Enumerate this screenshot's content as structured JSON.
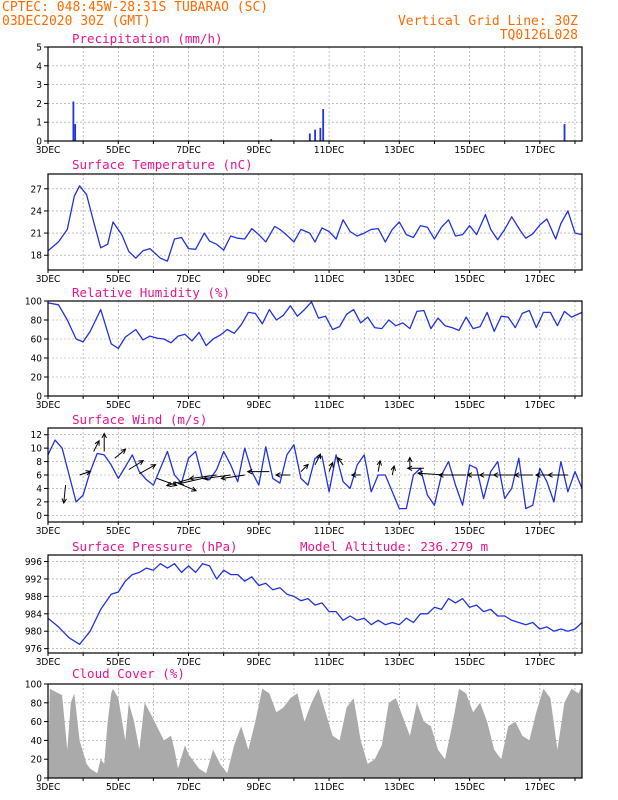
{
  "header": {
    "line1": "CPTEC:   048:45W-28:31S  TUBARAO (SC)",
    "line2": "03DEC2020 30Z (GMT)",
    "right1": "Vertical Grid Line: 30Z",
    "right2": "TQ0126L028"
  },
  "colors": {
    "header": "#ff6a00",
    "title": "#e8158c",
    "line": "#2233dd",
    "cloud": "#aaaaaa",
    "wind_arrow": "#000000"
  },
  "x_tick_labels": [
    "3DEC",
    "5DEC",
    "7DEC",
    "9DEC",
    "11DEC",
    "13DEC",
    "15DEC",
    "17DEC"
  ],
  "chart_data": [
    {
      "id": "precipitation",
      "type": "bar",
      "title": "Precipitation (mm/h)",
      "x_unit": "days since 3DEC2020 00Z",
      "xlim": [
        0,
        15.2
      ],
      "ylim": [
        0,
        5
      ],
      "yticks": [
        0,
        1,
        2,
        3,
        4,
        5
      ],
      "x": [
        0.72,
        0.77,
        6.35,
        7.45,
        7.6,
        7.75,
        7.83,
        14.7
      ],
      "values": [
        2.1,
        0.9,
        0.1,
        0.4,
        0.6,
        0.7,
        1.7,
        0.9
      ]
    },
    {
      "id": "temperature",
      "type": "line",
      "title": "Surface Temperature (nC)",
      "xlim": [
        0,
        15.2
      ],
      "ylim": [
        16,
        29
      ],
      "yticks": [
        18,
        21,
        24,
        27
      ],
      "x": [
        0,
        0.3,
        0.55,
        0.75,
        0.9,
        1.1,
        1.3,
        1.5,
        1.7,
        1.85,
        2.1,
        2.3,
        2.5,
        2.7,
        2.9,
        3.2,
        3.4,
        3.6,
        3.8,
        4.0,
        4.2,
        4.45,
        4.6,
        4.8,
        5.0,
        5.2,
        5.4,
        5.6,
        5.8,
        6.0,
        6.2,
        6.45,
        6.6,
        6.8,
        7.0,
        7.2,
        7.45,
        7.6,
        7.8,
        8.0,
        8.2,
        8.4,
        8.6,
        8.8,
        9.0,
        9.2,
        9.4,
        9.6,
        9.8,
        10.0,
        10.2,
        10.4,
        10.6,
        10.8,
        11.0,
        11.2,
        11.4,
        11.6,
        11.8,
        12.0,
        12.2,
        12.45,
        12.6,
        12.8,
        13.0,
        13.2,
        13.45,
        13.6,
        13.8,
        14.0,
        14.2,
        14.45,
        14.6,
        14.8,
        15.0,
        15.2
      ],
      "values": [
        18.6,
        19.8,
        21.5,
        26.0,
        27.4,
        26.2,
        22.5,
        19.0,
        19.5,
        22.5,
        20.8,
        18.5,
        17.6,
        18.6,
        18.9,
        17.6,
        17.2,
        20.2,
        20.4,
        18.9,
        18.8,
        21.0,
        19.9,
        19.5,
        18.7,
        20.6,
        20.3,
        20.2,
        21.6,
        20.8,
        19.8,
        21.9,
        21.5,
        20.7,
        19.8,
        21.5,
        21.0,
        19.8,
        21.7,
        21.2,
        20.2,
        22.8,
        21.2,
        20.6,
        21.0,
        21.5,
        21.6,
        19.8,
        21.5,
        22.5,
        20.8,
        20.4,
        22.0,
        21.8,
        20.2,
        21.8,
        22.8,
        20.6,
        20.8,
        22.0,
        20.8,
        23.5,
        21.5,
        20.1,
        21.5,
        23.2,
        21.3,
        20.3,
        20.9,
        22.1,
        22.9,
        20.2,
        22.3,
        24.0,
        21.0,
        20.8
      ]
    },
    {
      "id": "humidity",
      "type": "line",
      "title": "Relative Humidity (%)",
      "xlim": [
        0,
        15.2
      ],
      "ylim": [
        0,
        100
      ],
      "yticks": [
        0,
        20,
        40,
        60,
        80,
        100
      ],
      "x": [
        0,
        0.3,
        0.55,
        0.8,
        1.0,
        1.2,
        1.5,
        1.8,
        2.0,
        2.2,
        2.5,
        2.7,
        2.9,
        3.1,
        3.3,
        3.5,
        3.7,
        3.9,
        4.1,
        4.3,
        4.5,
        4.7,
        4.9,
        5.1,
        5.3,
        5.5,
        5.7,
        5.9,
        6.1,
        6.3,
        6.5,
        6.7,
        6.9,
        7.1,
        7.3,
        7.5,
        7.7,
        7.9,
        8.1,
        8.3,
        8.5,
        8.7,
        8.9,
        9.1,
        9.3,
        9.5,
        9.7,
        9.9,
        10.1,
        10.3,
        10.5,
        10.7,
        10.9,
        11.1,
        11.3,
        11.5,
        11.7,
        11.9,
        12.1,
        12.3,
        12.5,
        12.7,
        12.9,
        13.1,
        13.3,
        13.5,
        13.7,
        13.9,
        14.1,
        14.3,
        14.5,
        14.7,
        14.9,
        15.2
      ],
      "values": [
        98,
        96,
        80,
        60,
        57,
        68,
        91,
        55,
        50,
        62,
        70,
        59,
        63,
        61,
        60,
        56,
        63,
        65,
        58,
        67,
        53,
        60,
        64,
        70,
        66,
        75,
        88,
        87,
        76,
        91,
        80,
        85,
        95,
        84,
        91,
        99,
        82,
        84,
        70,
        73,
        86,
        91,
        77,
        83,
        72,
        71,
        80,
        74,
        77,
        71,
        89,
        90,
        71,
        82,
        74,
        72,
        69,
        83,
        71,
        73,
        88,
        68,
        84,
        83,
        72,
        87,
        90,
        72,
        88,
        88,
        74,
        89,
        83,
        88
      ]
    },
    {
      "id": "wind",
      "type": "line",
      "title": "Surface Wind (m/s)",
      "xlim": [
        0,
        15.2
      ],
      "ylim": [
        -1,
        13
      ],
      "yticks": [
        0,
        2,
        4,
        6,
        8,
        10,
        12
      ],
      "x": [
        0,
        0.2,
        0.4,
        0.6,
        0.8,
        1.0,
        1.2,
        1.4,
        1.6,
        1.8,
        2.0,
        2.2,
        2.4,
        2.6,
        2.8,
        3.0,
        3.2,
        3.4,
        3.6,
        3.8,
        4.0,
        4.2,
        4.4,
        4.6,
        4.8,
        5.0,
        5.2,
        5.4,
        5.6,
        5.8,
        6.0,
        6.2,
        6.4,
        6.6,
        6.8,
        7.0,
        7.2,
        7.4,
        7.6,
        7.8,
        8.0,
        8.2,
        8.4,
        8.6,
        8.8,
        9.0,
        9.2,
        9.4,
        9.6,
        9.8,
        10.0,
        10.2,
        10.4,
        10.6,
        10.8,
        11.0,
        11.2,
        11.4,
        11.6,
        11.8,
        12.0,
        12.2,
        12.4,
        12.6,
        12.8,
        13.0,
        13.2,
        13.4,
        13.6,
        13.8,
        14.0,
        14.2,
        14.4,
        14.6,
        14.8,
        15.0,
        15.2
      ],
      "values": [
        9,
        11.2,
        10,
        6,
        2,
        3,
        6.5,
        9.2,
        9,
        7.5,
        5.5,
        7.2,
        9,
        6.5,
        5.3,
        4.5,
        7,
        9.5,
        6,
        4.8,
        8.5,
        9.5,
        5.5,
        5.3,
        6.8,
        9.5,
        7.5,
        5,
        10,
        6.5,
        4.5,
        10.2,
        5.5,
        4.8,
        9,
        10.5,
        5.5,
        4.5,
        8.5,
        8.8,
        3.5,
        9,
        5,
        4,
        7.5,
        9,
        3.5,
        6,
        6,
        3.5,
        1,
        1,
        6,
        7,
        3,
        1.5,
        6,
        8,
        4.5,
        1.5,
        7.5,
        7,
        2.5,
        6.5,
        8,
        2.5,
        4,
        8.5,
        1,
        1.5,
        7,
        5,
        2,
        8,
        3.5,
        6.5,
        4
      ],
      "arrows_x": [
        0.5,
        0.9,
        1.3,
        1.6,
        1.9,
        2.3,
        2.6,
        3.1,
        3.6,
        4.1,
        4.4,
        4.8,
        5.2,
        5.6,
        6.3,
        6.9,
        7.2,
        7.6,
        8.0,
        8.4,
        8.9,
        9.4,
        9.8,
        10.3,
        10.7,
        11.3,
        11.9,
        12.3,
        12.8,
        13.3,
        13.8,
        14.4,
        14.8
      ],
      "arrows_y": [
        4.5,
        6,
        9.5,
        9.5,
        8.5,
        6.8,
        6.2,
        5.5,
        5,
        5.5,
        5.5,
        6,
        6,
        6,
        6.5,
        6,
        6.5,
        7.5,
        6.5,
        7.5,
        6,
        6.5,
        6,
        7,
        7,
        6,
        6,
        6,
        6,
        6,
        6,
        6,
        6
      ],
      "arrows_u": [
        -0.1,
        0.6,
        0.3,
        0.0,
        0.6,
        0.8,
        0.9,
        1.1,
        1.2,
        -1.4,
        -1.3,
        -1.5,
        -1.5,
        -1.3,
        -1.2,
        -0.8,
        0.4,
        0.3,
        0.2,
        -0.3,
        -0.5,
        0.1,
        0.1,
        0.0,
        -0.9,
        -1.5,
        -1.5,
        -0.7,
        -1.0,
        -1.2,
        -1.0,
        -1.0,
        -1.1
      ],
      "arrows_v": [
        -1.0,
        0.2,
        0.6,
        1.0,
        0.5,
        0.5,
        0.5,
        -0.4,
        -0.5,
        -0.4,
        -0.3,
        -0.2,
        -0.2,
        -0.2,
        0.0,
        0.0,
        0.4,
        0.6,
        0.5,
        0.4,
        0.0,
        0.6,
        0.5,
        0.6,
        0.0,
        0.1,
        0.0,
        0.0,
        0.0,
        0.0,
        0.0,
        0.0,
        0.0
      ]
    },
    {
      "id": "pressure",
      "type": "line",
      "title": "Surface Pressure (hPa)",
      "annotation": "Model Altitude: 236.279 m",
      "xlim": [
        0,
        15.2
      ],
      "ylim": [
        975,
        997.5
      ],
      "yticks": [
        976,
        980,
        984,
        988,
        992,
        996
      ],
      "x": [
        0,
        0.3,
        0.6,
        0.9,
        1.2,
        1.5,
        1.8,
        2.0,
        2.2,
        2.4,
        2.6,
        2.8,
        3.0,
        3.2,
        3.4,
        3.6,
        3.8,
        4.0,
        4.2,
        4.4,
        4.6,
        4.8,
        5.0,
        5.2,
        5.4,
        5.6,
        5.8,
        6.0,
        6.2,
        6.4,
        6.6,
        6.8,
        7.0,
        7.2,
        7.4,
        7.6,
        7.8,
        8.0,
        8.2,
        8.4,
        8.6,
        8.8,
        9.0,
        9.2,
        9.4,
        9.6,
        9.8,
        10.0,
        10.2,
        10.4,
        10.6,
        10.8,
        11.0,
        11.2,
        11.4,
        11.6,
        11.8,
        12.0,
        12.2,
        12.4,
        12.6,
        12.8,
        13.0,
        13.2,
        13.4,
        13.6,
        13.8,
        14.0,
        14.2,
        14.4,
        14.6,
        14.8,
        15.0,
        15.2
      ],
      "values": [
        983,
        981,
        978.5,
        977,
        980,
        985,
        988.5,
        989,
        991.5,
        993,
        993.5,
        994.5,
        994,
        995.5,
        994.5,
        995.5,
        993.5,
        995,
        993.5,
        995.5,
        995,
        992,
        994,
        993,
        993,
        991.5,
        992.5,
        990.5,
        991,
        989.5,
        990,
        988.5,
        988,
        987,
        987.5,
        986,
        986.5,
        984.5,
        984.5,
        982.5,
        983.5,
        982.5,
        983,
        981.5,
        982.5,
        981.5,
        982,
        981.5,
        983,
        982,
        984,
        984,
        985.5,
        985,
        987.5,
        986.5,
        987.5,
        985.5,
        986,
        984.5,
        985,
        983.5,
        983.5,
        982.5,
        982,
        981.5,
        982,
        980.5,
        981,
        980,
        980.5,
        980,
        980.5,
        982
      ]
    },
    {
      "id": "cloud",
      "type": "area",
      "title": "Cloud Cover (%)",
      "xlim": [
        0,
        15.2
      ],
      "ylim": [
        0,
        100
      ],
      "yticks": [
        0,
        20,
        40,
        60,
        80,
        100
      ],
      "x": [
        0,
        0.05,
        0.4,
        0.55,
        0.65,
        0.75,
        0.9,
        1.1,
        1.2,
        1.4,
        1.5,
        1.6,
        1.7,
        1.8,
        1.85,
        2.0,
        2.2,
        2.3,
        2.45,
        2.6,
        2.75,
        2.9,
        3.1,
        3.3,
        3.5,
        3.6,
        3.7,
        3.9,
        4.0,
        4.3,
        4.5,
        4.7,
        4.9,
        5.1,
        5.3,
        5.5,
        5.7,
        5.9,
        6.1,
        6.3,
        6.5,
        6.7,
        6.9,
        7.1,
        7.3,
        7.5,
        7.7,
        7.9,
        8.1,
        8.3,
        8.5,
        8.7,
        8.9,
        9.1,
        9.3,
        9.5,
        9.7,
        9.9,
        10.1,
        10.3,
        10.5,
        10.7,
        10.9,
        11.1,
        11.3,
        11.5,
        11.7,
        11.9,
        12.1,
        12.3,
        12.5,
        12.7,
        12.9,
        13.1,
        13.3,
        13.5,
        13.7,
        13.9,
        14.1,
        14.3,
        14.5,
        14.7,
        14.9,
        15.1,
        15.2
      ],
      "values": [
        0,
        95,
        88,
        30,
        80,
        90,
        40,
        15,
        10,
        5,
        20,
        15,
        60,
        90,
        95,
        85,
        40,
        80,
        60,
        30,
        80,
        70,
        55,
        40,
        45,
        30,
        10,
        35,
        25,
        10,
        5,
        30,
        15,
        5,
        35,
        55,
        30,
        60,
        95,
        90,
        70,
        75,
        85,
        90,
        60,
        80,
        95,
        70,
        45,
        40,
        75,
        85,
        40,
        15,
        20,
        35,
        80,
        85,
        65,
        45,
        80,
        60,
        55,
        30,
        20,
        55,
        95,
        90,
        70,
        80,
        60,
        30,
        20,
        55,
        60,
        45,
        40,
        70,
        95,
        85,
        30,
        80,
        95,
        90,
        98
      ]
    }
  ]
}
